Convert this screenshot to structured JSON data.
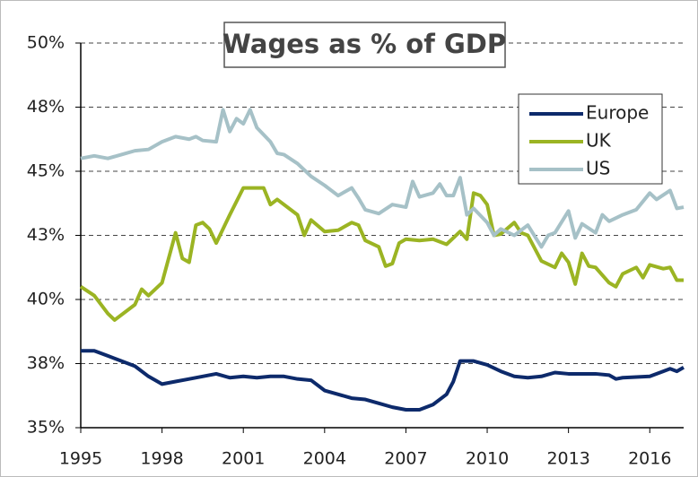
{
  "chart_data": {
    "type": "line",
    "title": "Wages as % of GDP",
    "xlim": [
      1995,
      2017.25
    ],
    "xticks": [
      1995,
      1998,
      2001,
      2004,
      2007,
      2010,
      2013,
      2016
    ],
    "ylim": [
      35,
      50
    ],
    "yticks": [
      {
        "value": 35,
        "label": "35%"
      },
      {
        "value": 37.5,
        "label": "38%"
      },
      {
        "value": 40,
        "label": "40%"
      },
      {
        "value": 42.5,
        "label": "43%"
      },
      {
        "value": 45,
        "label": "45%"
      },
      {
        "value": 47.5,
        "label": "48%"
      },
      {
        "value": 50,
        "label": "50%"
      }
    ],
    "grid": true,
    "legend": "upper right",
    "series": [
      {
        "name": "Europe",
        "color": "#0d2a6b",
        "x": [
          1995,
          1995.5,
          1996,
          1996.5,
          1997,
          1997.5,
          1998,
          1998.5,
          1999,
          1999.5,
          2000,
          2000.5,
          2001,
          2001.5,
          2002,
          2002.5,
          2003,
          2003.5,
          2004,
          2004.5,
          2005,
          2005.5,
          2006,
          2006.5,
          2007,
          2007.5,
          2008,
          2008.5,
          2008.75,
          2009,
          2009.5,
          2010,
          2010.5,
          2011,
          2011.5,
          2012,
          2012.5,
          2013,
          2013.5,
          2014,
          2014.5,
          2014.75,
          2015,
          2016,
          2016.5,
          2016.75,
          2017,
          2017.25
        ],
        "values": [
          38.0,
          38.0,
          37.8,
          37.6,
          37.4,
          37.0,
          36.7,
          36.8,
          36.9,
          37.0,
          37.1,
          36.95,
          37.0,
          36.95,
          37.0,
          37.0,
          36.9,
          36.85,
          36.45,
          36.3,
          36.15,
          36.1,
          35.95,
          35.8,
          35.7,
          35.7,
          35.9,
          36.3,
          36.8,
          37.6,
          37.6,
          37.45,
          37.2,
          37.0,
          36.95,
          37.0,
          37.15,
          37.1,
          37.1,
          37.1,
          37.05,
          36.9,
          36.95,
          37.0,
          37.2,
          37.3,
          37.2,
          37.35
        ]
      },
      {
        "name": "UK",
        "color": "#9bb423",
        "x": [
          1995,
          1995.5,
          1996,
          1996.25,
          1997,
          1997.25,
          1997.5,
          1998,
          1998.5,
          1998.75,
          1999,
          1999.25,
          1999.5,
          1999.75,
          2000,
          2000.5,
          2001,
          2001.5,
          2001.75,
          2002,
          2002.25,
          2003,
          2003.25,
          2003.5,
          2004,
          2004.5,
          2005,
          2005.25,
          2005.5,
          2006,
          2006.25,
          2006.5,
          2006.75,
          2007,
          2007.5,
          2008,
          2008.5,
          2009,
          2009.25,
          2009.5,
          2009.75,
          2010,
          2010.25,
          2010.5,
          2011,
          2011.25,
          2011.5,
          2012,
          2012.5,
          2012.75,
          2013,
          2013.25,
          2013.5,
          2013.75,
          2014,
          2014.5,
          2014.75,
          2015,
          2015.5,
          2015.75,
          2016,
          2016.5,
          2016.75,
          2017,
          2017.25
        ],
        "values": [
          40.5,
          40.15,
          39.45,
          39.2,
          39.8,
          40.4,
          40.15,
          40.65,
          42.6,
          41.6,
          41.45,
          42.9,
          43.0,
          42.75,
          42.2,
          43.3,
          44.35,
          44.35,
          44.35,
          43.7,
          43.9,
          43.3,
          42.5,
          43.1,
          42.65,
          42.7,
          43.0,
          42.9,
          42.3,
          42.05,
          41.3,
          41.4,
          42.2,
          42.35,
          42.3,
          42.35,
          42.15,
          42.65,
          42.35,
          44.15,
          44.05,
          43.7,
          42.5,
          42.55,
          43.0,
          42.6,
          42.5,
          41.5,
          41.25,
          41.8,
          41.45,
          40.6,
          41.8,
          41.3,
          41.25,
          40.65,
          40.5,
          41.0,
          41.25,
          40.85,
          41.35,
          41.2,
          41.25,
          40.75,
          40.75
        ]
      },
      {
        "name": "US",
        "color": "#a6c1c7",
        "x": [
          1995,
          1995.5,
          1996,
          1996.5,
          1997,
          1997.5,
          1998,
          1998.5,
          1999,
          1999.25,
          1999.5,
          2000,
          2000.25,
          2000.5,
          2000.75,
          2001,
          2001.25,
          2001.5,
          2002,
          2002.25,
          2002.5,
          2003,
          2003.5,
          2004,
          2004.5,
          2005,
          2005.25,
          2005.5,
          2006,
          2006.5,
          2007,
          2007.25,
          2007.5,
          2008,
          2008.25,
          2008.5,
          2008.75,
          2009,
          2009.25,
          2009.5,
          2010,
          2010.25,
          2010.5,
          2011,
          2011.5,
          2012,
          2012.25,
          2012.5,
          2013,
          2013.25,
          2013.5,
          2014,
          2014.25,
          2014.5,
          2015,
          2015.5,
          2016,
          2016.25,
          2016.75,
          2017,
          2017.25
        ],
        "values": [
          45.5,
          45.6,
          45.5,
          45.65,
          45.8,
          45.85,
          46.15,
          46.35,
          46.25,
          46.35,
          46.2,
          46.15,
          47.4,
          46.55,
          47.05,
          46.85,
          47.4,
          46.7,
          46.15,
          45.7,
          45.65,
          45.3,
          44.8,
          44.45,
          44.05,
          44.35,
          43.95,
          43.5,
          43.35,
          43.7,
          43.6,
          44.6,
          44.0,
          44.15,
          44.5,
          44.05,
          44.05,
          44.75,
          43.3,
          43.55,
          43.0,
          42.5,
          42.75,
          42.5,
          42.9,
          42.05,
          42.5,
          42.6,
          43.45,
          42.4,
          42.95,
          42.6,
          43.3,
          43.05,
          43.3,
          43.5,
          44.15,
          43.9,
          44.25,
          43.55,
          43.6
        ]
      }
    ]
  }
}
